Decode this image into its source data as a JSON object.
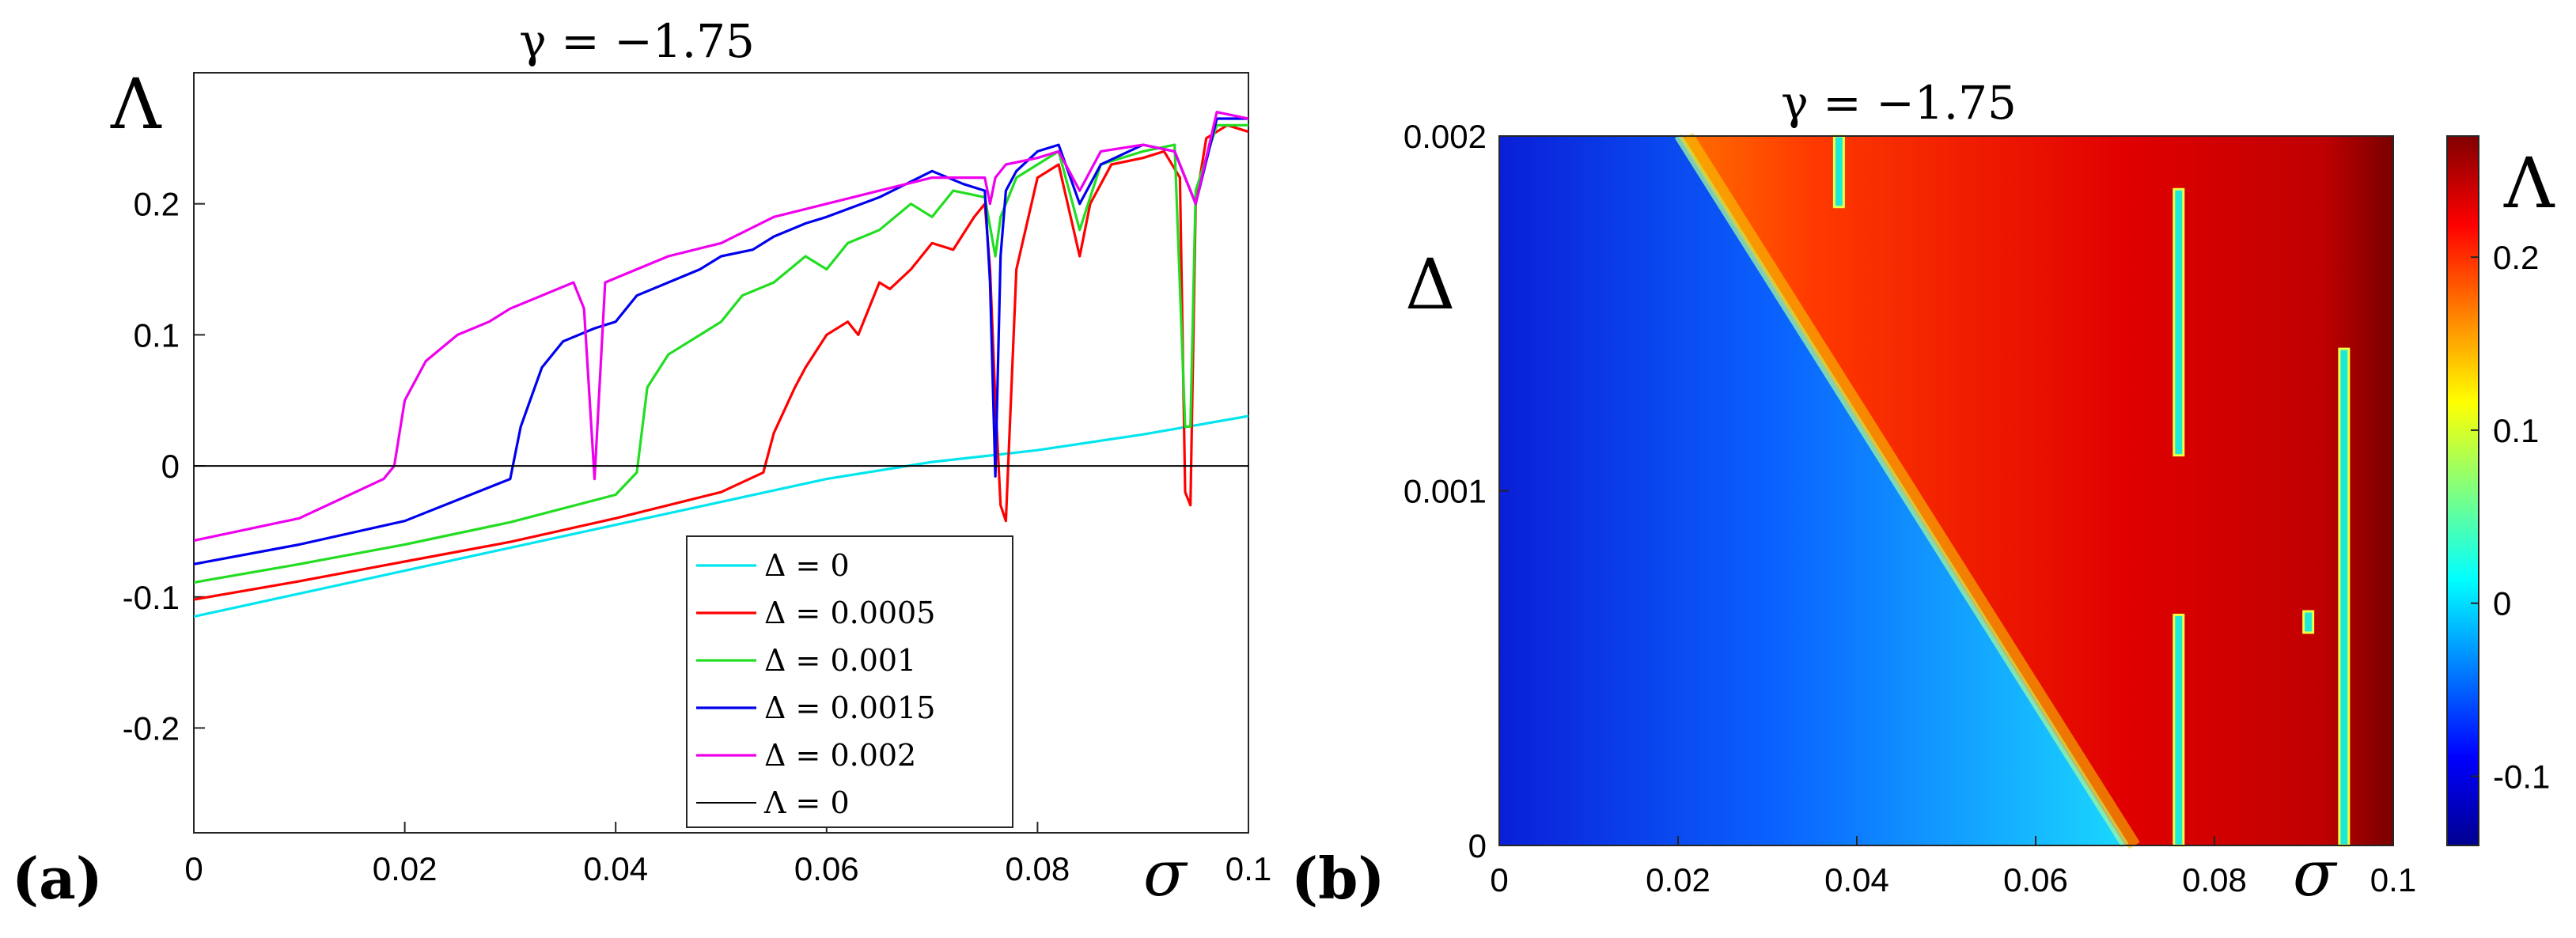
{
  "chart_data": [
    {
      "type": "line",
      "panel": "(a)",
      "title": "γ = −1.75",
      "xlabel": "σ",
      "ylabel": "Λ",
      "xlim": [
        0,
        0.1
      ],
      "ylim": [
        -0.28,
        0.3
      ],
      "xticks": [
        0,
        0.02,
        0.04,
        0.06,
        0.08,
        0.1
      ],
      "xtick_labels": [
        "0",
        "0.02",
        "0.04",
        "0.06",
        "0.08",
        "0.1"
      ],
      "yticks": [
        -0.2,
        -0.1,
        0,
        0.1,
        0.2
      ],
      "ytick_labels": [
        "-0.2",
        "-0.1",
        "0",
        "0.1",
        "0.2"
      ],
      "legend_position": "bottom-center",
      "series": [
        {
          "name": "Δ = 0",
          "color": "#00e5ee",
          "x": [
            0,
            0.02,
            0.04,
            0.06,
            0.07,
            0.08,
            0.09,
            0.1
          ],
          "y": [
            -0.115,
            -0.08,
            -0.045,
            -0.01,
            0.003,
            0.012,
            0.024,
            0.038
          ]
        },
        {
          "name": "Δ = 0.0005",
          "color": "#ff0000",
          "x": [
            0,
            0.01,
            0.02,
            0.03,
            0.04,
            0.05,
            0.054,
            0.055,
            0.057,
            0.058,
            0.06,
            0.062,
            0.063,
            0.065,
            0.066,
            0.068,
            0.07,
            0.072,
            0.074,
            0.075,
            0.0755,
            0.076,
            0.0765,
            0.077,
            0.078,
            0.08,
            0.082,
            0.084,
            0.085,
            0.087,
            0.09,
            0.092,
            0.0935,
            0.094,
            0.0945,
            0.095,
            0.096,
            0.098,
            0.1
          ],
          "y": [
            -0.102,
            -0.088,
            -0.073,
            -0.058,
            -0.04,
            -0.02,
            -0.005,
            0.025,
            0.06,
            0.075,
            0.1,
            0.11,
            0.1,
            0.14,
            0.135,
            0.15,
            0.17,
            0.165,
            0.19,
            0.2,
            0.15,
            0.05,
            -0.03,
            -0.042,
            0.15,
            0.22,
            0.23,
            0.16,
            0.2,
            0.23,
            0.235,
            0.24,
            0.22,
            -0.02,
            -0.03,
            0.2,
            0.25,
            0.26,
            0.255
          ]
        },
        {
          "name": "Δ = 0.001",
          "color": "#22dd22",
          "x": [
            0,
            0.01,
            0.02,
            0.03,
            0.04,
            0.042,
            0.043,
            0.045,
            0.047,
            0.05,
            0.052,
            0.055,
            0.058,
            0.06,
            0.062,
            0.065,
            0.068,
            0.07,
            0.072,
            0.075,
            0.076,
            0.0765,
            0.077,
            0.078,
            0.08,
            0.082,
            0.084,
            0.086,
            0.09,
            0.093,
            0.094,
            0.0945,
            0.095,
            0.097,
            0.1
          ],
          "y": [
            -0.089,
            -0.075,
            -0.06,
            -0.043,
            -0.022,
            -0.005,
            0.06,
            0.085,
            0.095,
            0.11,
            0.13,
            0.14,
            0.16,
            0.15,
            0.17,
            0.18,
            0.2,
            0.19,
            0.21,
            0.205,
            0.16,
            0.19,
            0.2,
            0.22,
            0.23,
            0.24,
            0.18,
            0.23,
            0.24,
            0.245,
            0.03,
            0.03,
            0.21,
            0.26,
            0.26
          ]
        },
        {
          "name": "Δ = 0.0015",
          "color": "#0000ee",
          "x": [
            0,
            0.01,
            0.02,
            0.03,
            0.031,
            0.033,
            0.035,
            0.038,
            0.04,
            0.042,
            0.045,
            0.048,
            0.05,
            0.053,
            0.055,
            0.058,
            0.06,
            0.065,
            0.07,
            0.073,
            0.075,
            0.0755,
            0.076,
            0.0765,
            0.077,
            0.078,
            0.08,
            0.082,
            0.084,
            0.086,
            0.09,
            0.093,
            0.094,
            0.0945,
            0.095,
            0.097,
            0.1
          ],
          "y": [
            -0.075,
            -0.06,
            -0.042,
            -0.01,
            0.03,
            0.075,
            0.095,
            0.105,
            0.11,
            0.13,
            0.14,
            0.15,
            0.16,
            0.165,
            0.175,
            0.185,
            0.19,
            0.205,
            0.225,
            0.215,
            0.21,
            0.14,
            -0.008,
            0.16,
            0.21,
            0.225,
            0.24,
            0.245,
            0.2,
            0.23,
            0.245,
            0.24,
            0.22,
            0.21,
            0.2,
            0.265,
            0.265
          ]
        },
        {
          "name": "Δ = 0.002",
          "color": "#ee00ee",
          "x": [
            0,
            0.01,
            0.018,
            0.019,
            0.02,
            0.022,
            0.025,
            0.028,
            0.03,
            0.033,
            0.036,
            0.037,
            0.038,
            0.039,
            0.042,
            0.045,
            0.05,
            0.055,
            0.06,
            0.065,
            0.07,
            0.075,
            0.0755,
            0.076,
            0.077,
            0.08,
            0.082,
            0.084,
            0.086,
            0.09,
            0.093,
            0.094,
            0.0945,
            0.095,
            0.097,
            0.1
          ],
          "y": [
            -0.057,
            -0.04,
            -0.01,
            0.0,
            0.05,
            0.08,
            0.1,
            0.11,
            0.12,
            0.13,
            0.14,
            0.12,
            -0.01,
            0.14,
            0.15,
            0.16,
            0.17,
            0.19,
            0.2,
            0.21,
            0.22,
            0.22,
            0.2,
            0.22,
            0.23,
            0.235,
            0.24,
            0.21,
            0.24,
            0.245,
            0.24,
            0.22,
            0.21,
            0.2,
            0.27,
            0.265
          ]
        },
        {
          "name": "Λ = 0",
          "color": "#000000",
          "x": [
            0,
            0.1
          ],
          "y": [
            0,
            0
          ]
        }
      ]
    },
    {
      "type": "heatmap",
      "panel": "(b)",
      "title": "γ = −1.75",
      "xlabel": "σ",
      "ylabel": "Δ",
      "colorbar_label": "Λ",
      "xlim": [
        0,
        0.1
      ],
      "ylim": [
        0,
        0.002
      ],
      "clim": [
        -0.14,
        0.27
      ],
      "xticks": [
        0,
        0.02,
        0.04,
        0.06,
        0.08,
        0.1
      ],
      "xtick_labels": [
        "0",
        "0.02",
        "0.04",
        "0.06",
        "0.08",
        "0.1"
      ],
      "yticks": [
        0,
        0.001,
        0.002
      ],
      "ytick_labels": [
        "0",
        "0.001",
        "0.002"
      ],
      "colorbar_ticks": [
        -0.1,
        0,
        0.1,
        0.2
      ],
      "colorbar_tick_labels": [
        "-0.1",
        "0",
        "0.1",
        "0.2"
      ],
      "boundary": {
        "sigma_at_delta_0": 0.07,
        "sigma_at_delta_max": 0.02
      },
      "windows": [
        {
          "sigma": 0.038,
          "delta_from": 0.0018,
          "delta_to": 0.002
        },
        {
          "sigma": 0.076,
          "delta_from": 0.0,
          "delta_to": 0.00065
        },
        {
          "sigma": 0.076,
          "delta_from": 0.0011,
          "delta_to": 0.00185
        },
        {
          "sigma": 0.0945,
          "delta_from": 0.0,
          "delta_to": 0.0014
        },
        {
          "sigma": 0.0905,
          "delta_from": 0.0006,
          "delta_to": 0.00066
        }
      ]
    }
  ]
}
